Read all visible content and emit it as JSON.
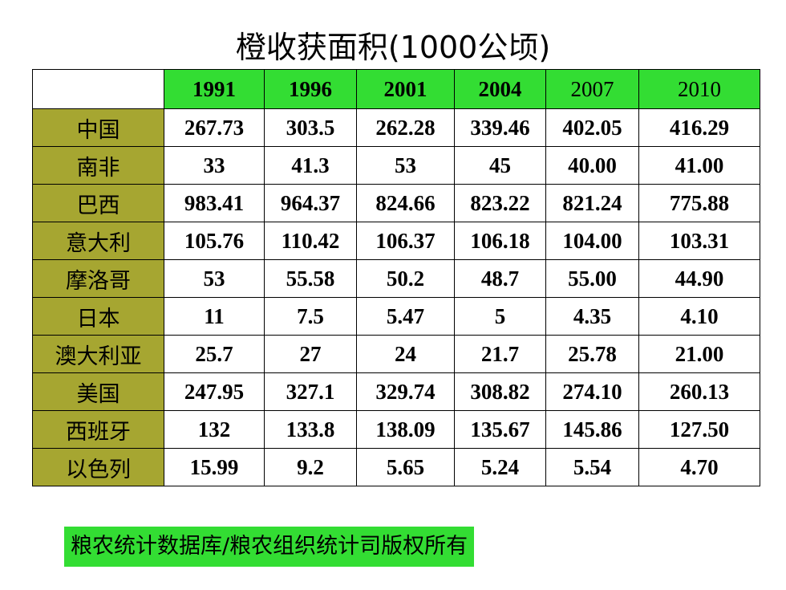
{
  "title": "橙收获面积(1000公顷)",
  "table": {
    "corner": "",
    "years": [
      "1991",
      "1996",
      "2001",
      "2004",
      "2007",
      "2010"
    ],
    "rows": [
      {
        "country": "中国",
        "values": [
          "267.73",
          "303.5",
          "262.28",
          "339.46",
          "402.05",
          "416.29"
        ]
      },
      {
        "country": "南非",
        "values": [
          "33",
          "41.3",
          "53",
          "45",
          "40.00",
          "41.00"
        ]
      },
      {
        "country": "巴西",
        "values": [
          "983.41",
          "964.37",
          "824.66",
          "823.22",
          "821.24",
          "775.88"
        ]
      },
      {
        "country": "意大利",
        "values": [
          "105.76",
          "110.42",
          "106.37",
          "106.18",
          "104.00",
          "103.31"
        ]
      },
      {
        "country": "摩洛哥",
        "values": [
          "53",
          "55.58",
          "50.2",
          "48.7",
          "55.00",
          "44.90"
        ]
      },
      {
        "country": "日本",
        "values": [
          "11",
          "7.5",
          "5.47",
          "5",
          "4.35",
          "4.10"
        ]
      },
      {
        "country": "澳大利亚",
        "values": [
          "25.7",
          "27",
          "24",
          "21.7",
          "25.78",
          "21.00"
        ]
      },
      {
        "country": "美国",
        "values": [
          "247.95",
          "327.1",
          "329.74",
          "308.82",
          "274.10",
          "260.13"
        ]
      },
      {
        "country": "西班牙",
        "values": [
          "132",
          "133.8",
          "138.09",
          "135.67",
          "145.86",
          "127.50"
        ]
      },
      {
        "country": "以色列",
        "values": [
          "15.99",
          "9.2",
          "5.65",
          "5.24",
          "5.54",
          "4.70"
        ]
      }
    ]
  },
  "source": "粮农统计数据库/粮农组织统计司版权所有",
  "colors": {
    "header_green": "#33dd33",
    "country_olive": "#a6a631",
    "source_green": "#33dd33"
  }
}
